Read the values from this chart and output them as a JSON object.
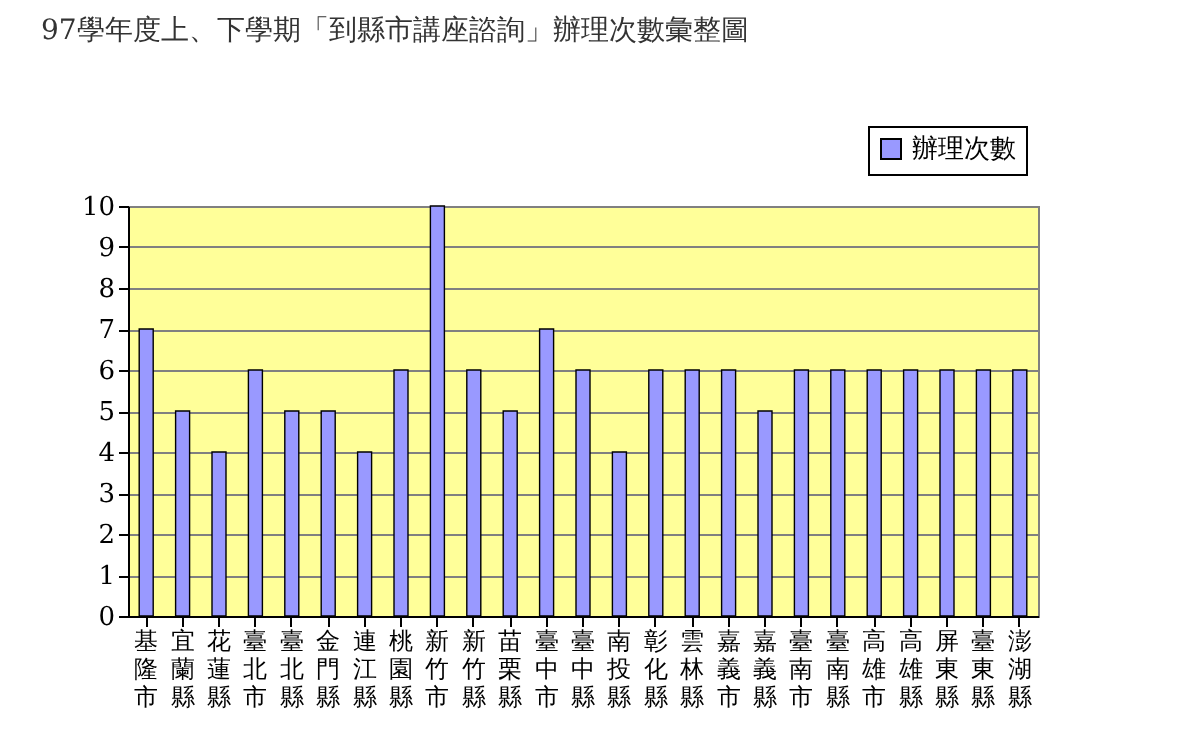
{
  "chart_data": {
    "type": "bar",
    "title": "97學年度上、下學期「到縣市講座諮詢」辦理次數彙整圖",
    "categories": [
      "基隆市",
      "宜蘭縣",
      "花蓮縣",
      "臺北市",
      "臺北縣",
      "金門縣",
      "連江縣",
      "桃園縣",
      "新竹市",
      "新竹縣",
      "苗栗縣",
      "臺中市",
      "臺中縣",
      "南投縣",
      "彰化縣",
      "雲林縣",
      "嘉義市",
      "嘉義縣",
      "臺南市",
      "臺南縣",
      "高雄市",
      "高雄縣",
      "屏東縣",
      "臺東縣",
      "澎湖縣"
    ],
    "series": [
      {
        "name": "辦理次數",
        "color": "#9999ff",
        "values": [
          7,
          5,
          4,
          6,
          5,
          5,
          4,
          6,
          10,
          6,
          5,
          7,
          6,
          4,
          6,
          6,
          6,
          5,
          6,
          6,
          6,
          6,
          6,
          6,
          6
        ]
      }
    ],
    "ylim": [
      0,
      10
    ],
    "yticks": [
      0,
      1,
      2,
      3,
      4,
      5,
      6,
      7,
      8,
      9,
      10
    ],
    "grid": "y",
    "legend": "top right"
  }
}
